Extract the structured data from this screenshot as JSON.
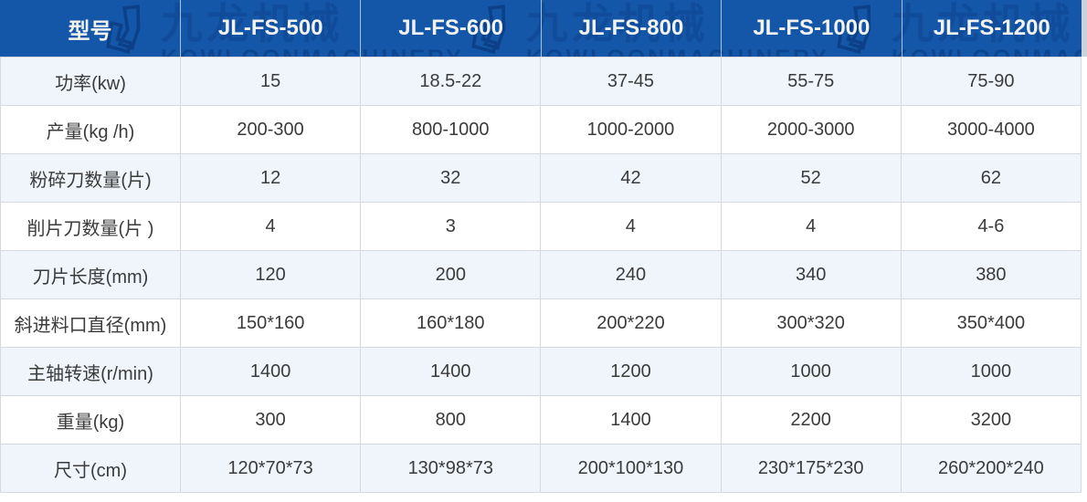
{
  "watermark": {
    "cn": "九龙机械",
    "en": "KOWLOONMACHINERY",
    "repeat": 3,
    "logo_name": "jl-monogram"
  },
  "colors": {
    "header_bg": "#1457a9",
    "header_text": "#f1f1ee",
    "watermark_cn": "#114c9b",
    "watermark_en": "#0d4690",
    "row_alt_bg": "#eff5fb",
    "row_bg": "#ffffff",
    "border": "#d5d9de",
    "body_text": "#3b3b3b"
  },
  "table": {
    "header": [
      "型号",
      "JL-FS-500",
      "JL-FS-600",
      "JL-FS-800",
      "JL-FS-1000",
      "JL-FS-1200"
    ],
    "rows": [
      {
        "label": "功率(kw)",
        "values": [
          "15",
          "18.5-22",
          "37-45",
          "55-75",
          "75-90"
        ]
      },
      {
        "label": "产量(kg /h)",
        "values": [
          "200-300",
          "800-1000",
          "1000-2000",
          "2000-3000",
          "3000-4000"
        ]
      },
      {
        "label": "粉碎刀数量(片)",
        "values": [
          "12",
          "32",
          "42",
          "52",
          "62"
        ]
      },
      {
        "label": "削片刀数量(片 )",
        "values": [
          "4",
          "3",
          "4",
          "4",
          "4-6"
        ]
      },
      {
        "label": "刀片长度(mm)",
        "values": [
          "120",
          "200",
          "240",
          "340",
          "380"
        ]
      },
      {
        "label": "斜进料口直径(mm)",
        "values": [
          "150*160",
          "160*180",
          "200*220",
          "300*320",
          "350*400"
        ]
      },
      {
        "label": "主轴转速(r/min)",
        "values": [
          "1400",
          "1400",
          "1200",
          "1000",
          "1000"
        ]
      },
      {
        "label": "重量(kg)",
        "values": [
          "300",
          "800",
          "1400",
          "2200",
          "3200"
        ]
      },
      {
        "label": "尺寸(cm)",
        "values": [
          "120*70*73",
          "130*98*73",
          "200*100*130",
          "230*175*230",
          "260*200*240"
        ]
      }
    ]
  }
}
